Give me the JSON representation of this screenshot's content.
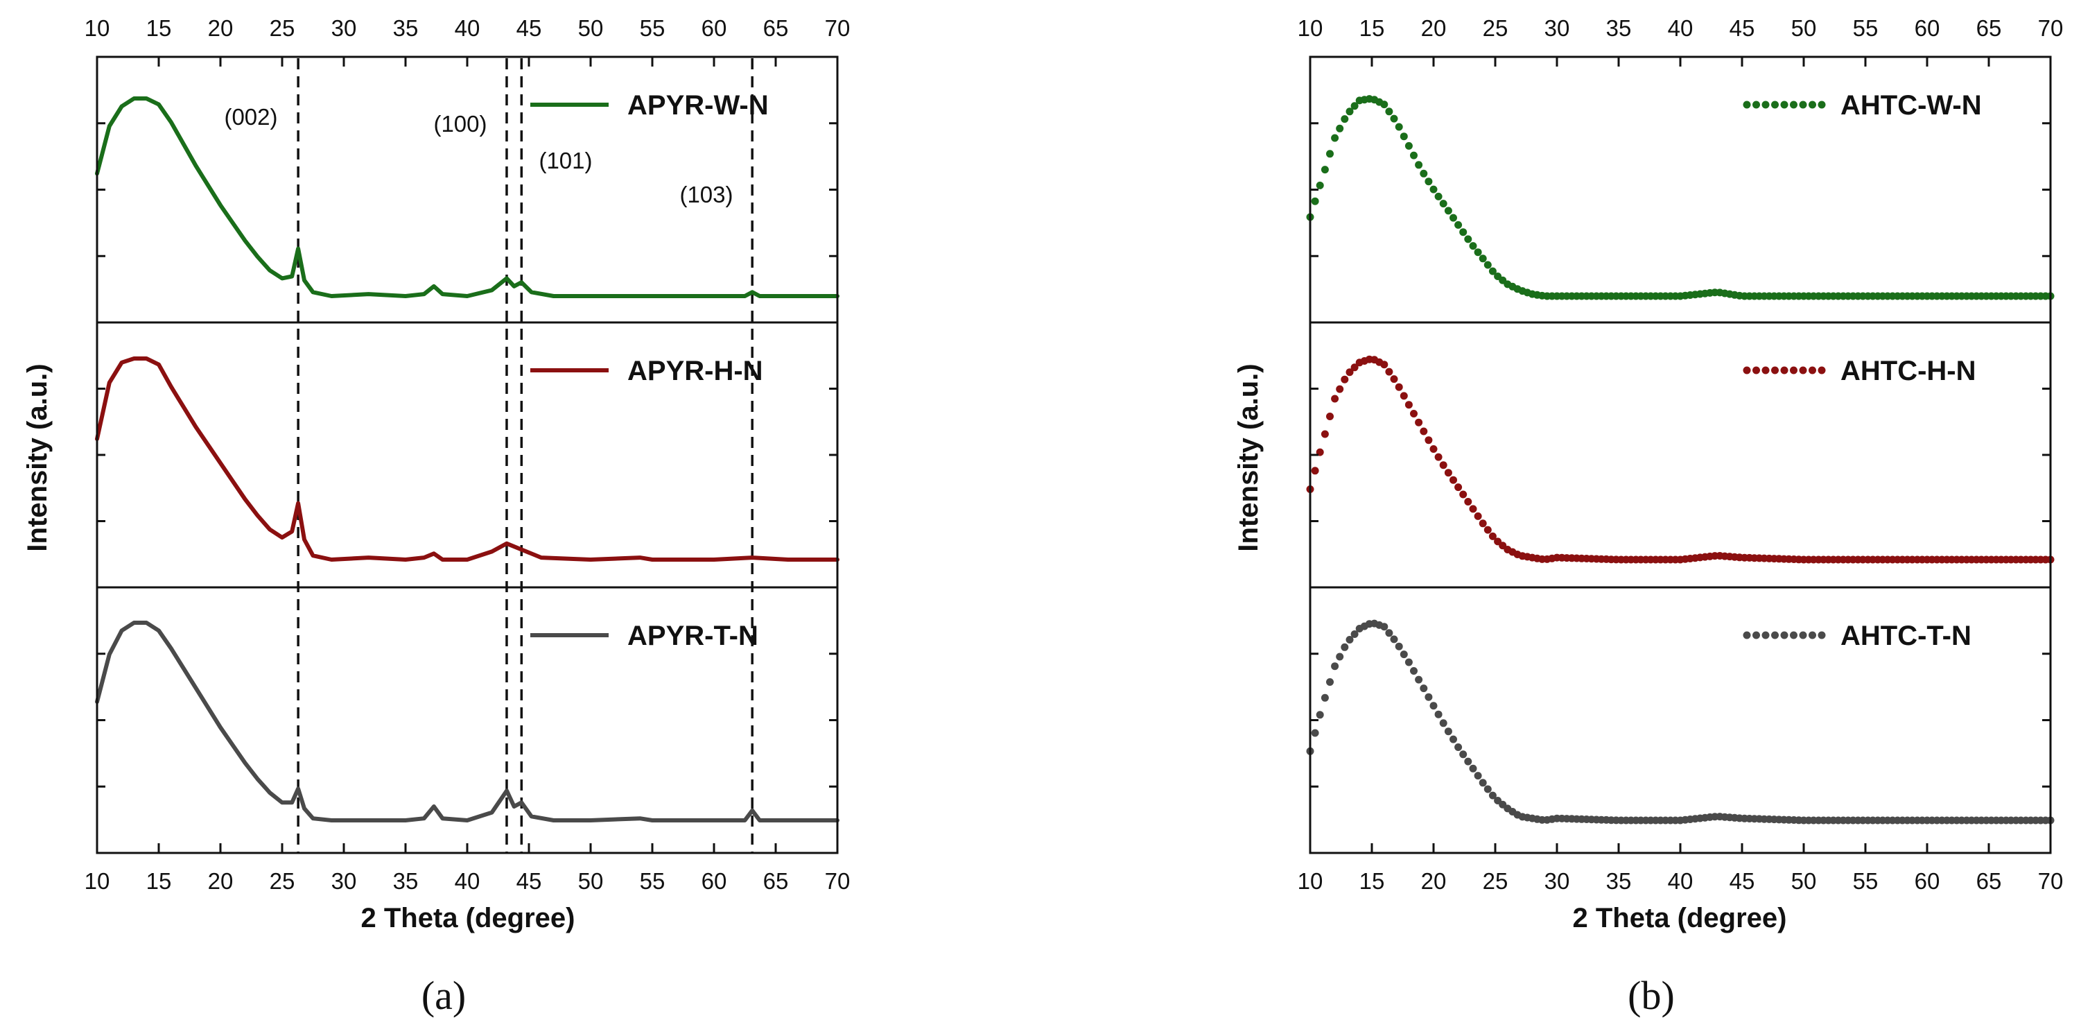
{
  "chart_data": [
    {
      "id": "a",
      "type": "line",
      "panel_label": "(a)",
      "xlabel": "2 Theta (degree)",
      "ylabel": "Intensity (a.u.)",
      "xlim": [
        10,
        70
      ],
      "x_ticks": [
        10,
        15,
        20,
        25,
        30,
        35,
        40,
        45,
        50,
        55,
        60,
        65,
        70
      ],
      "style": "solid",
      "reference_lines": [
        {
          "x": 26.3,
          "label": "(002)"
        },
        {
          "x": 43.2,
          "label": "(100)"
        },
        {
          "x": 44.4,
          "label": "(101)"
        },
        {
          "x": 63.1,
          "label": "(103)"
        }
      ],
      "series": [
        {
          "name": "APYR-W-N",
          "color": "#1a6e1a",
          "x": [
            10,
            11,
            12,
            13,
            14,
            15,
            16,
            17,
            18,
            19,
            20,
            21,
            22,
            23,
            24,
            25,
            25.8,
            26.3,
            26.8,
            27.5,
            29,
            32,
            35,
            36.5,
            37.3,
            38,
            40,
            42,
            43.2,
            43.8,
            44.4,
            45.2,
            47,
            50,
            55,
            60,
            62.5,
            63.1,
            63.7,
            66,
            70
          ],
          "y": [
            0.62,
            0.86,
            0.96,
            1.0,
            1.0,
            0.97,
            0.88,
            0.77,
            0.66,
            0.56,
            0.46,
            0.37,
            0.28,
            0.2,
            0.13,
            0.09,
            0.1,
            0.24,
            0.08,
            0.02,
            0.0,
            0.01,
            0.0,
            0.01,
            0.05,
            0.01,
            0.0,
            0.03,
            0.09,
            0.05,
            0.07,
            0.02,
            0.0,
            0.0,
            0.0,
            0.0,
            0.0,
            0.02,
            0.0,
            0.0,
            0.0
          ]
        },
        {
          "name": "APYR-H-N",
          "color": "#8b1010",
          "x": [
            10,
            11,
            12,
            13,
            14,
            15,
            16,
            17,
            18,
            19,
            20,
            21,
            22,
            23,
            24,
            25,
            25.8,
            26.3,
            26.8,
            27.5,
            29,
            32,
            35,
            36.5,
            37.3,
            38,
            40,
            42,
            43.2,
            44.4,
            46,
            50,
            54,
            55,
            60,
            63.1,
            66,
            70
          ],
          "y": [
            0.6,
            0.88,
            0.98,
            1.0,
            1.0,
            0.97,
            0.86,
            0.76,
            0.66,
            0.57,
            0.48,
            0.39,
            0.3,
            0.22,
            0.15,
            0.11,
            0.14,
            0.28,
            0.1,
            0.02,
            0.0,
            0.01,
            0.0,
            0.01,
            0.03,
            0.0,
            0.0,
            0.04,
            0.08,
            0.05,
            0.01,
            0.0,
            0.01,
            0.0,
            0.0,
            0.01,
            0.0,
            0.0
          ]
        },
        {
          "name": "APYR-T-N",
          "color": "#4a4a4a",
          "x": [
            10,
            11,
            12,
            13,
            14,
            15,
            16,
            17,
            18,
            19,
            20,
            21,
            22,
            23,
            24,
            25,
            25.8,
            26.3,
            26.8,
            27.5,
            29,
            32,
            35,
            36.5,
            37.3,
            38,
            40,
            42,
            43.2,
            43.8,
            44.4,
            45.2,
            47,
            50,
            54,
            55,
            60,
            62.5,
            63.1,
            63.7,
            66,
            70
          ],
          "y": [
            0.6,
            0.84,
            0.96,
            1.0,
            1.0,
            0.96,
            0.87,
            0.77,
            0.67,
            0.57,
            0.47,
            0.38,
            0.29,
            0.21,
            0.14,
            0.09,
            0.09,
            0.16,
            0.06,
            0.01,
            0.0,
            0.0,
            0.0,
            0.01,
            0.07,
            0.01,
            0.0,
            0.04,
            0.15,
            0.07,
            0.09,
            0.02,
            0.0,
            0.0,
            0.01,
            0.0,
            0.0,
            0.0,
            0.05,
            0.0,
            0.0,
            0.0
          ]
        }
      ]
    },
    {
      "id": "b",
      "type": "scatter",
      "panel_label": "(b)",
      "xlabel": "2 Theta (degree)",
      "ylabel": "Intensity (a.u.)",
      "xlim": [
        10,
        70
      ],
      "x_ticks": [
        10,
        15,
        20,
        25,
        30,
        35,
        40,
        45,
        50,
        55,
        60,
        65,
        70
      ],
      "style": "dotted",
      "series": [
        {
          "name": "AHTC-W-N",
          "color": "#1a6e1a",
          "x": [
            10,
            11,
            12,
            13,
            14,
            15,
            16,
            17,
            18,
            19,
            20,
            21,
            22,
            23,
            24,
            25,
            26,
            27,
            28,
            29,
            30,
            35,
            40,
            43,
            45,
            50,
            55,
            60,
            65,
            70
          ],
          "y": [
            0.4,
            0.6,
            0.8,
            0.92,
            0.99,
            1.0,
            0.97,
            0.88,
            0.76,
            0.64,
            0.54,
            0.45,
            0.36,
            0.27,
            0.19,
            0.11,
            0.06,
            0.03,
            0.01,
            0.0,
            0.0,
            0.0,
            0.0,
            0.02,
            0.0,
            0.0,
            0.0,
            0.0,
            0.0,
            0.0
          ]
        },
        {
          "name": "AHTC-H-N",
          "color": "#8b1010",
          "x": [
            10,
            11,
            12,
            13,
            14,
            15,
            16,
            17,
            18,
            19,
            20,
            21,
            22,
            23,
            24,
            25,
            26,
            27,
            28,
            29,
            30,
            35,
            40,
            43,
            45,
            50,
            55,
            60,
            65,
            70
          ],
          "y": [
            0.35,
            0.58,
            0.8,
            0.92,
            0.98,
            1.0,
            0.97,
            0.88,
            0.77,
            0.66,
            0.55,
            0.45,
            0.36,
            0.27,
            0.18,
            0.1,
            0.05,
            0.02,
            0.01,
            0.0,
            0.01,
            0.0,
            0.0,
            0.02,
            0.01,
            0.0,
            0.0,
            0.0,
            0.0,
            0.0
          ]
        },
        {
          "name": "AHTC-T-N",
          "color": "#4a4a4a",
          "x": [
            10,
            11,
            12,
            13,
            14,
            15,
            16,
            17,
            18,
            19,
            20,
            21,
            22,
            23,
            24,
            25,
            26,
            27,
            28,
            29,
            30,
            35,
            40,
            43,
            45,
            50,
            55,
            60,
            65,
            70
          ],
          "y": [
            0.35,
            0.58,
            0.78,
            0.9,
            0.97,
            1.0,
            0.98,
            0.9,
            0.8,
            0.69,
            0.58,
            0.47,
            0.37,
            0.28,
            0.19,
            0.11,
            0.06,
            0.02,
            0.01,
            0.0,
            0.01,
            0.0,
            0.0,
            0.02,
            0.01,
            0.0,
            0.0,
            0.0,
            0.0,
            0.0
          ]
        }
      ]
    }
  ]
}
